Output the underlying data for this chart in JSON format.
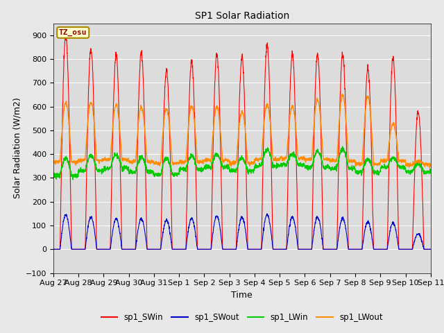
{
  "title": "SP1 Solar Radiation",
  "xlabel": "Time",
  "ylabel": "Solar Radiation (W/m2)",
  "ylim": [
    -100,
    950
  ],
  "yticks": [
    -100,
    0,
    100,
    200,
    300,
    400,
    500,
    600,
    700,
    800,
    900
  ],
  "date_labels": [
    "Aug 27",
    "Aug 28",
    "Aug 29",
    "Aug 30",
    "Aug 31",
    "Sep 1",
    "Sep 2",
    "Sep 3",
    "Sep 4",
    "Sep 5",
    "Sep 6",
    "Sep 7",
    "Sep 8",
    "Sep 9",
    "Sep 10",
    "Sep 11"
  ],
  "colors": {
    "sp1_SWin": "#ff0000",
    "sp1_SWout": "#0000cc",
    "sp1_LWin": "#00cc00",
    "sp1_LWout": "#ff8c00"
  },
  "fig_facecolor": "#e8e8e8",
  "ax_facecolor": "#dcdcdc",
  "annotation_text": "TZ_osu",
  "annotation_bg": "#ffffcc",
  "annotation_border": "#aa8800",
  "n_days": 15,
  "pts_per_day": 144,
  "sw_in_peaks": [
    900,
    840,
    815,
    830,
    750,
    790,
    820,
    805,
    855,
    820,
    820,
    820,
    760,
    800,
    580
  ],
  "sw_out_peaks": [
    145,
    135,
    130,
    130,
    120,
    130,
    140,
    135,
    145,
    135,
    135,
    130,
    115,
    110,
    65
  ],
  "lw_in_base": [
    310,
    330,
    340,
    325,
    315,
    335,
    345,
    330,
    350,
    355,
    345,
    340,
    325,
    345,
    325
  ],
  "lw_in_peak": [
    385,
    395,
    400,
    388,
    382,
    392,
    398,
    383,
    418,
    402,
    412,
    423,
    378,
    383,
    358
  ],
  "lw_out_base": [
    368,
    373,
    378,
    368,
    362,
    368,
    373,
    362,
    378,
    382,
    378,
    373,
    358,
    373,
    355
  ],
  "lw_out_peak": [
    615,
    618,
    608,
    598,
    592,
    602,
    598,
    578,
    608,
    602,
    628,
    648,
    642,
    528,
    370
  ],
  "day_start": 0.27,
  "day_end": 0.73
}
